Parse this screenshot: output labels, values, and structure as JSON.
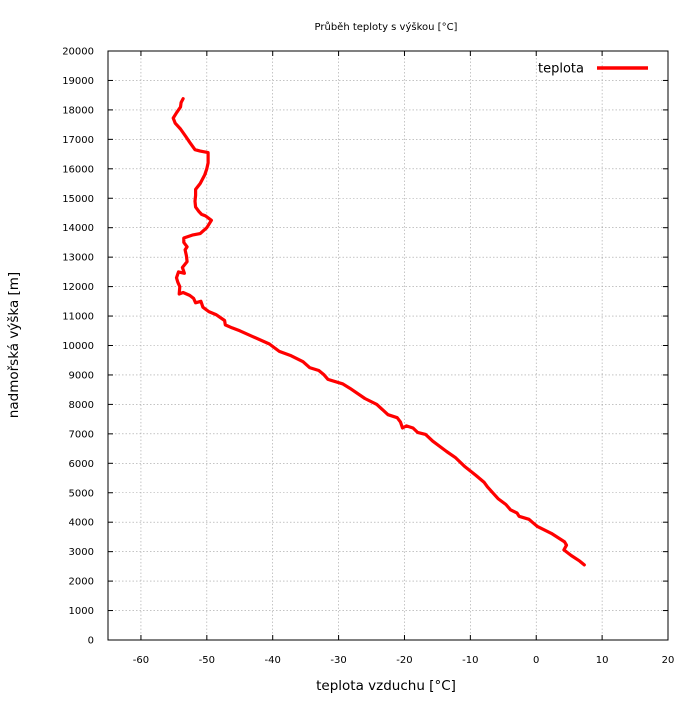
{
  "chart_data": {
    "type": "line",
    "title": "Průběh teploty s výškou [°C]",
    "xlabel": "teplota vzduchu [°C]",
    "ylabel": "nadmořská výška [m]",
    "xlim": [
      -65,
      20
    ],
    "ylim": [
      0,
      20000
    ],
    "x_ticks": [
      -60,
      -50,
      -40,
      -30,
      -20,
      -10,
      0,
      10,
      20
    ],
    "y_ticks": [
      0,
      1000,
      2000,
      3000,
      4000,
      5000,
      6000,
      7000,
      8000,
      9000,
      10000,
      11000,
      12000,
      13000,
      14000,
      15000,
      16000,
      17000,
      18000,
      19000,
      20000
    ],
    "grid": true,
    "legend": {
      "position": "top-right",
      "entries": [
        "teplota"
      ]
    },
    "series": [
      {
        "name": "teplota",
        "color": "#ff0000",
        "points": [
          [
            7.3,
            2550
          ],
          [
            6.6,
            2680
          ],
          [
            5.3,
            2870
          ],
          [
            4.2,
            3060
          ],
          [
            4.6,
            3220
          ],
          [
            4.3,
            3330
          ],
          [
            2.3,
            3620
          ],
          [
            0.2,
            3850
          ],
          [
            -0.6,
            4000
          ],
          [
            -1.1,
            4100
          ],
          [
            -2.6,
            4200
          ],
          [
            -2.9,
            4310
          ],
          [
            -3.9,
            4420
          ],
          [
            -4.6,
            4600
          ],
          [
            -5.8,
            4800
          ],
          [
            -6.6,
            5000
          ],
          [
            -7.4,
            5200
          ],
          [
            -7.9,
            5350
          ],
          [
            -9.2,
            5600
          ],
          [
            -10.9,
            5900
          ],
          [
            -12.3,
            6200
          ],
          [
            -13.6,
            6400
          ],
          [
            -15.7,
            6750
          ],
          [
            -16.8,
            6980
          ],
          [
            -18.0,
            7050
          ],
          [
            -18.7,
            7200
          ],
          [
            -19.7,
            7270
          ],
          [
            -20.3,
            7200
          ],
          [
            -20.6,
            7400
          ],
          [
            -21.1,
            7550
          ],
          [
            -22.5,
            7650
          ],
          [
            -24.2,
            8000
          ],
          [
            -26.0,
            8200
          ],
          [
            -28.3,
            8550
          ],
          [
            -29.4,
            8700
          ],
          [
            -31.6,
            8850
          ],
          [
            -32.2,
            9000
          ],
          [
            -33.0,
            9150
          ],
          [
            -34.4,
            9250
          ],
          [
            -35.4,
            9450
          ],
          [
            -37.2,
            9650
          ],
          [
            -39.0,
            9800
          ],
          [
            -40.5,
            10050
          ],
          [
            -43.0,
            10300
          ],
          [
            -45.0,
            10500
          ],
          [
            -46.2,
            10600
          ],
          [
            -47.2,
            10700
          ],
          [
            -47.3,
            10850
          ],
          [
            -48.6,
            11050
          ],
          [
            -49.7,
            11150
          ],
          [
            -50.6,
            11300
          ],
          [
            -50.9,
            11500
          ],
          [
            -51.7,
            11450
          ],
          [
            -52.0,
            11600
          ],
          [
            -52.6,
            11700
          ],
          [
            -53.6,
            11800
          ],
          [
            -54.2,
            11750
          ],
          [
            -54.1,
            12000
          ],
          [
            -54.4,
            12150
          ],
          [
            -54.6,
            12300
          ],
          [
            -54.3,
            12500
          ],
          [
            -53.4,
            12450
          ],
          [
            -53.7,
            12650
          ],
          [
            -53.0,
            12850
          ],
          [
            -53.1,
            13050
          ],
          [
            -53.3,
            13250
          ],
          [
            -53.0,
            13350
          ],
          [
            -53.5,
            13500
          ],
          [
            -53.5,
            13650
          ],
          [
            -52.2,
            13750
          ],
          [
            -51.0,
            13800
          ],
          [
            -50.0,
            14000
          ],
          [
            -49.3,
            14250
          ],
          [
            -50.2,
            14400
          ],
          [
            -50.8,
            14450
          ],
          [
            -51.2,
            14550
          ],
          [
            -51.7,
            14700
          ],
          [
            -51.8,
            14900
          ],
          [
            -51.7,
            15100
          ],
          [
            -51.7,
            15300
          ],
          [
            -51.0,
            15500
          ],
          [
            -50.3,
            15800
          ],
          [
            -50.0,
            16000
          ],
          [
            -49.8,
            16200
          ],
          [
            -49.8,
            16450
          ],
          [
            -49.8,
            16550
          ],
          [
            -51.0,
            16600
          ],
          [
            -51.8,
            16650
          ],
          [
            -52.6,
            16900
          ],
          [
            -53.2,
            17100
          ],
          [
            -54.0,
            17350
          ],
          [
            -54.8,
            17550
          ],
          [
            -55.1,
            17720
          ],
          [
            -54.6,
            17900
          ],
          [
            -54.0,
            18100
          ],
          [
            -53.9,
            18250
          ],
          [
            -53.6,
            18380
          ]
        ]
      }
    ]
  }
}
